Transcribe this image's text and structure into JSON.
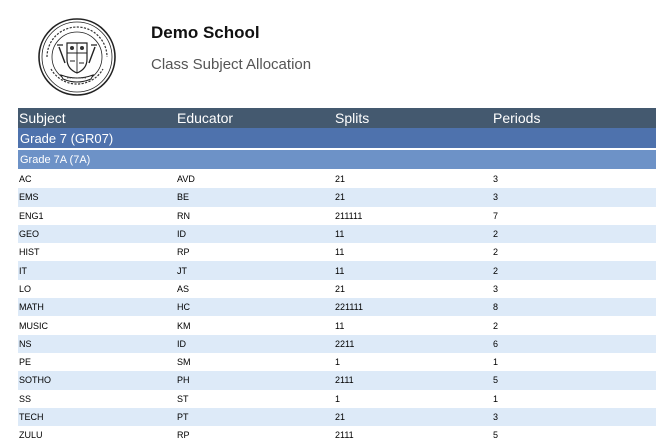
{
  "header": {
    "school_name": "Demo School",
    "report_title": "Class Subject Allocation"
  },
  "table": {
    "columns": [
      "Subject",
      "Educator",
      "Splits",
      "Periods"
    ],
    "grade_label": "Grade 7 (GR07)",
    "class_label": "Grade 7A (7A)",
    "rows": [
      {
        "subject": "AC",
        "educator": "AVD",
        "splits": "21",
        "periods": "3"
      },
      {
        "subject": "EMS",
        "educator": "BE",
        "splits": "21",
        "periods": "3"
      },
      {
        "subject": "ENG1",
        "educator": "RN",
        "splits": "211111",
        "periods": "7"
      },
      {
        "subject": "GEO",
        "educator": "ID",
        "splits": "11",
        "periods": "2"
      },
      {
        "subject": "HIST",
        "educator": "RP",
        "splits": "11",
        "periods": "2"
      },
      {
        "subject": "IT",
        "educator": "JT",
        "splits": "11",
        "periods": "2"
      },
      {
        "subject": "LO",
        "educator": "AS",
        "splits": "21",
        "periods": "3"
      },
      {
        "subject": "MATH",
        "educator": "HC",
        "splits": "221111",
        "periods": "8"
      },
      {
        "subject": "MUSIC",
        "educator": "KM",
        "splits": "11",
        "periods": "2"
      },
      {
        "subject": "NS",
        "educator": "ID",
        "splits": "2211",
        "periods": "6"
      },
      {
        "subject": "PE",
        "educator": "SM",
        "splits": "1",
        "periods": "1"
      },
      {
        "subject": "SOTHO",
        "educator": "PH",
        "splits": "2111",
        "periods": "5"
      },
      {
        "subject": "SS",
        "educator": "ST",
        "splits": "1",
        "periods": "1"
      },
      {
        "subject": "TECH",
        "educator": "PT",
        "splits": "21",
        "periods": "3"
      },
      {
        "subject": "ZULU",
        "educator": "RP",
        "splits": "2111",
        "periods": "5"
      }
    ]
  }
}
